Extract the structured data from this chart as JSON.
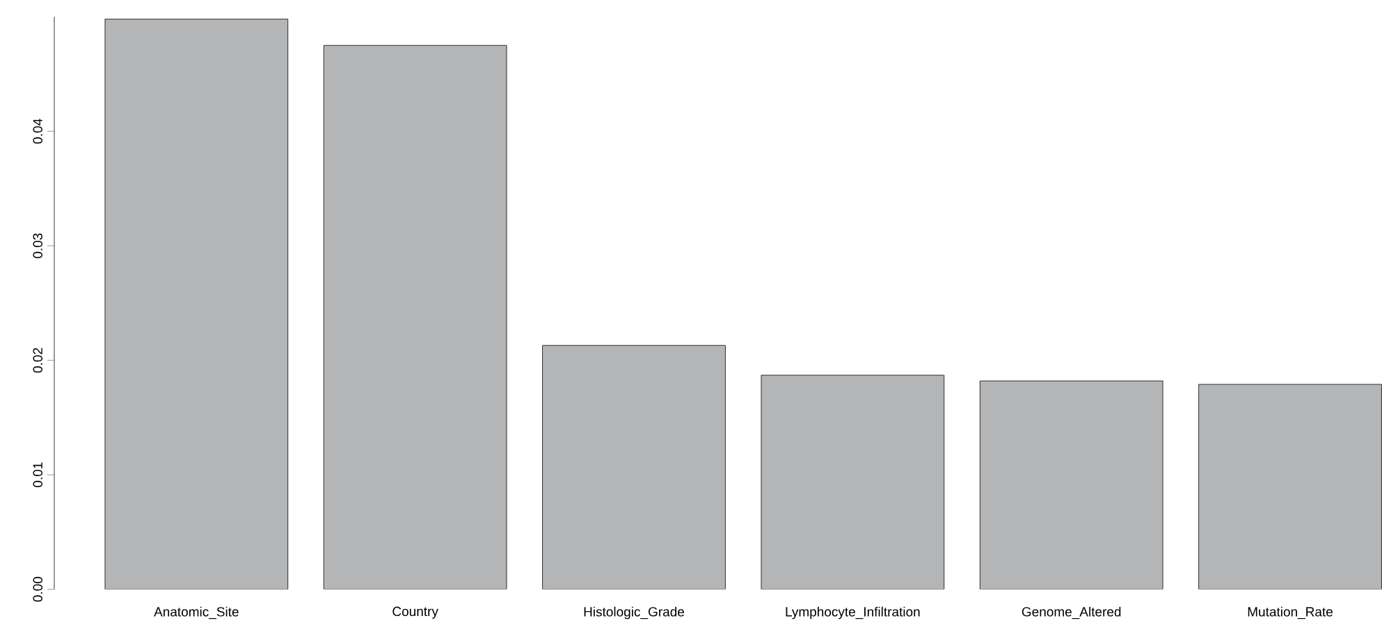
{
  "chart_data": {
    "type": "bar",
    "categories": [
      "Anatomic_Site",
      "Country",
      "Histologic_Grade",
      "Lymphocyte_Infiltration",
      "Genome_Altered",
      "Mutation_Rate"
    ],
    "values": [
      0.0498,
      0.0475,
      0.0213,
      0.0187,
      0.0182,
      0.0179
    ],
    "color": "#b4b5b7",
    "ylim": [
      0,
      0.05
    ],
    "yticks": [
      {
        "value": 0,
        "label": "0.00"
      },
      {
        "value": 0.01,
        "label": "0.01"
      },
      {
        "value": 0.02,
        "label": "0.02"
      },
      {
        "value": 0.03,
        "label": "0.03"
      },
      {
        "value": 0.04,
        "label": "0.04"
      }
    ]
  }
}
